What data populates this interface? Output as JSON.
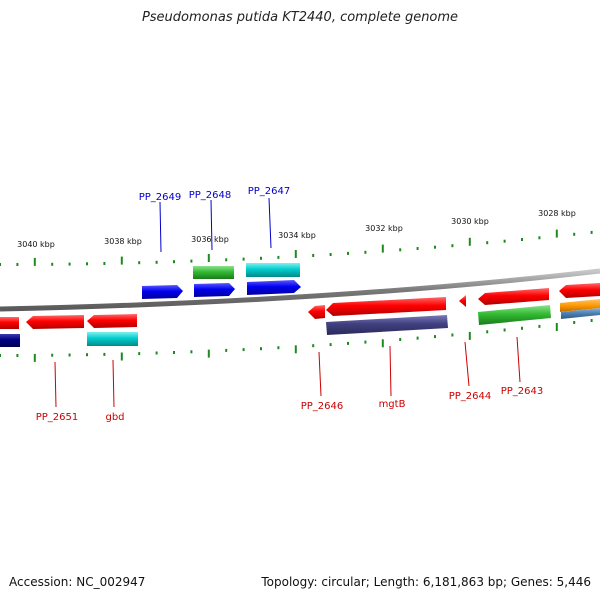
{
  "title": "Pseudomonas putida KT2440, complete genome",
  "footer": {
    "accession": "Accession: NC_002947",
    "summary": "Topology: circular; Length: 6,181,863 bp; Genes: 5,446"
  },
  "colors": {
    "backbone": "#8a8a8a",
    "tick": "#1e8a1e",
    "label_blue": "#0000cc",
    "label_red": "#cc0000",
    "feature_red": "#ff0000",
    "feature_blue": "#0000ee",
    "feature_green": "#33bb33",
    "feature_cyan": "#00cccc",
    "feature_navy": "#000080",
    "feature_slate": "#404080",
    "feature_orange": "#ff9900",
    "feature_steel": "#4a7fb0"
  },
  "scale_labels": [
    "3040 kbp",
    "3038 kbp",
    "3036 kbp",
    "3034 kbp",
    "3032 kbp",
    "3030 kbp",
    "3028 kbp"
  ],
  "gene_labels_top": [
    "PP_2649",
    "PP_2648",
    "PP_2647"
  ],
  "gene_labels_bottom": [
    "PP_2651",
    "gbd",
    "PP_2646",
    "mgtB",
    "PP_2644",
    "PP_2643"
  ]
}
